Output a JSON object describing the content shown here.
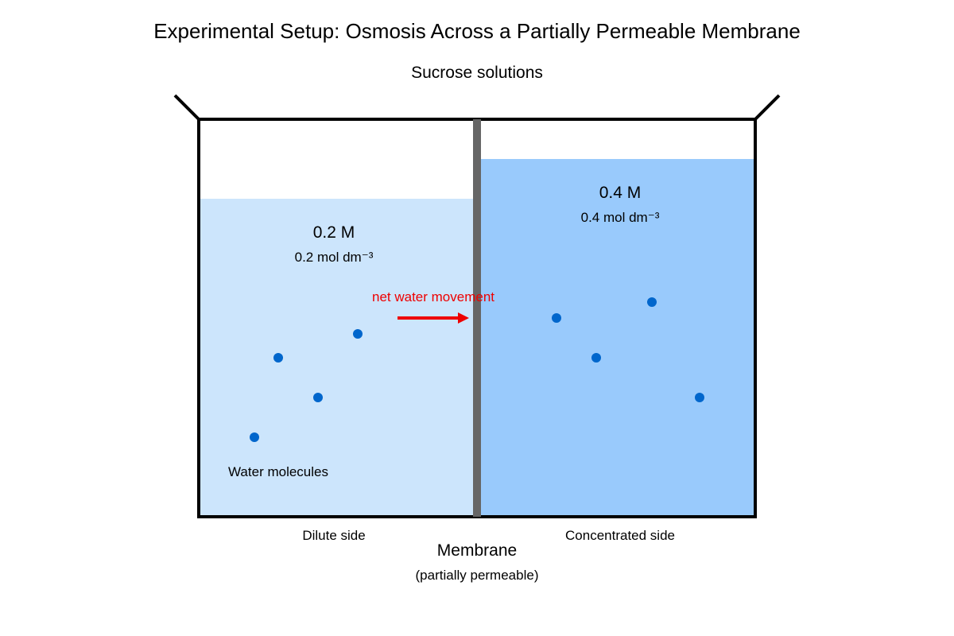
{
  "title": "Experimental Setup: Osmosis Across a Partially Permeable Membrane",
  "subtitle": "Sucrose solutions",
  "left_side": {
    "concentration": "0.2 M",
    "unit_text": "0.2 mol dm⁻³",
    "side_label": "Dilute side",
    "fill_color": "#cce5fc",
    "level_fraction": 0.8
  },
  "right_side": {
    "concentration": "0.4 M",
    "unit_text": "0.4 mol dm⁻³",
    "side_label": "Concentrated side",
    "fill_color": "#99cafc",
    "level_fraction": 0.9
  },
  "arrow": {
    "label": "net water movement",
    "color": "#ee0000",
    "direction": "right"
  },
  "water_molecules": {
    "label": "Water molecules",
    "color": "#0066cc"
  },
  "membrane": {
    "label": "Membrane",
    "sublabel": "(partially permeable)",
    "color": "#666666"
  }
}
